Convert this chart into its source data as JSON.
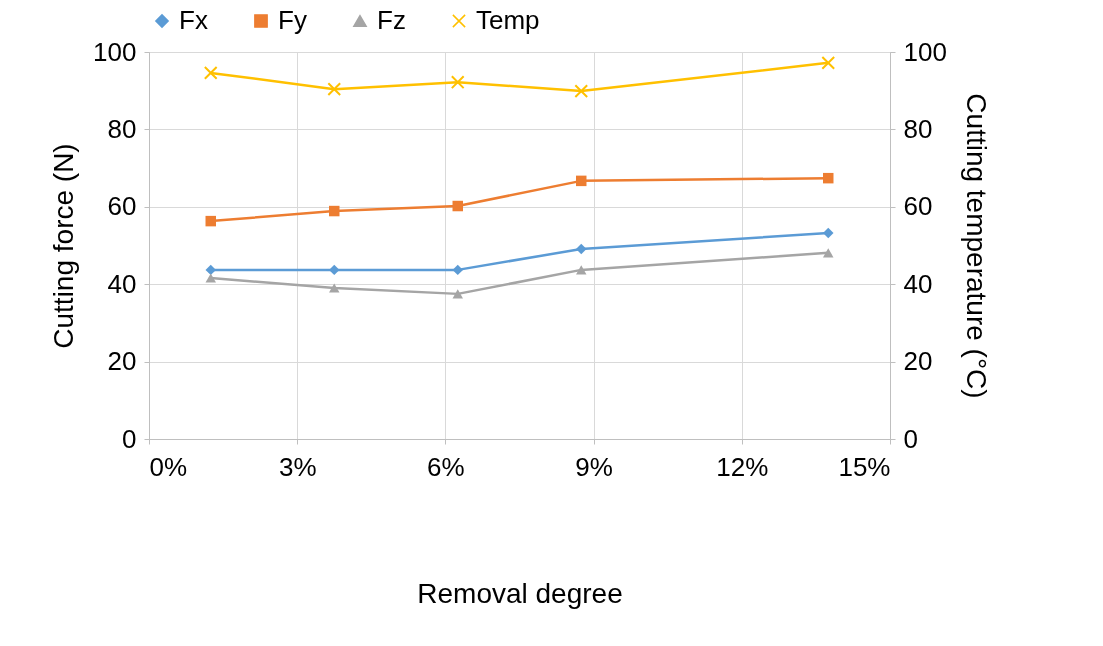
{
  "chart_data": {
    "type": "line",
    "xlabel": "Removal degree",
    "ylabel": "Cutting force (N)",
    "y2label": "Cutting temperature (°C)",
    "x": [
      1.25,
      3.75,
      6.25,
      8.75,
      13.75
    ],
    "xlim": [
      0,
      15
    ],
    "xticks": [
      {
        "value": 0,
        "label": "0%"
      },
      {
        "value": 3,
        "label": "3%"
      },
      {
        "value": 6,
        "label": "6%"
      },
      {
        "value": 9,
        "label": "9%"
      },
      {
        "value": 12,
        "label": "12%"
      },
      {
        "value": 15,
        "label": "15%"
      }
    ],
    "ylim": [
      0,
      100
    ],
    "yticks": [
      0,
      20,
      40,
      60,
      80,
      100
    ],
    "y2lim": [
      0,
      100
    ],
    "y2ticks": [
      0,
      20,
      40,
      60,
      80,
      100
    ],
    "grid": true,
    "legend": "top",
    "line_style": "solid",
    "series": [
      {
        "name": "Fx",
        "color": "#5b9bd5",
        "marker": "diamond",
        "values": [
          43.7,
          43.7,
          43.7,
          49.1,
          53.2
        ]
      },
      {
        "name": "Fy",
        "color": "#ed7d31",
        "marker": "square",
        "values": [
          56.3,
          58.9,
          60.2,
          66.7,
          67.4
        ]
      },
      {
        "name": "Fz",
        "color": "#a5a5a5",
        "marker": "triangle",
        "values": [
          41.6,
          39.0,
          37.5,
          43.7,
          48.1
        ]
      },
      {
        "name": "Temp",
        "color": "#ffc000",
        "marker": "cross",
        "axis": "y2",
        "values": [
          94.6,
          90.4,
          92.2,
          89.9,
          97.2
        ]
      }
    ]
  }
}
